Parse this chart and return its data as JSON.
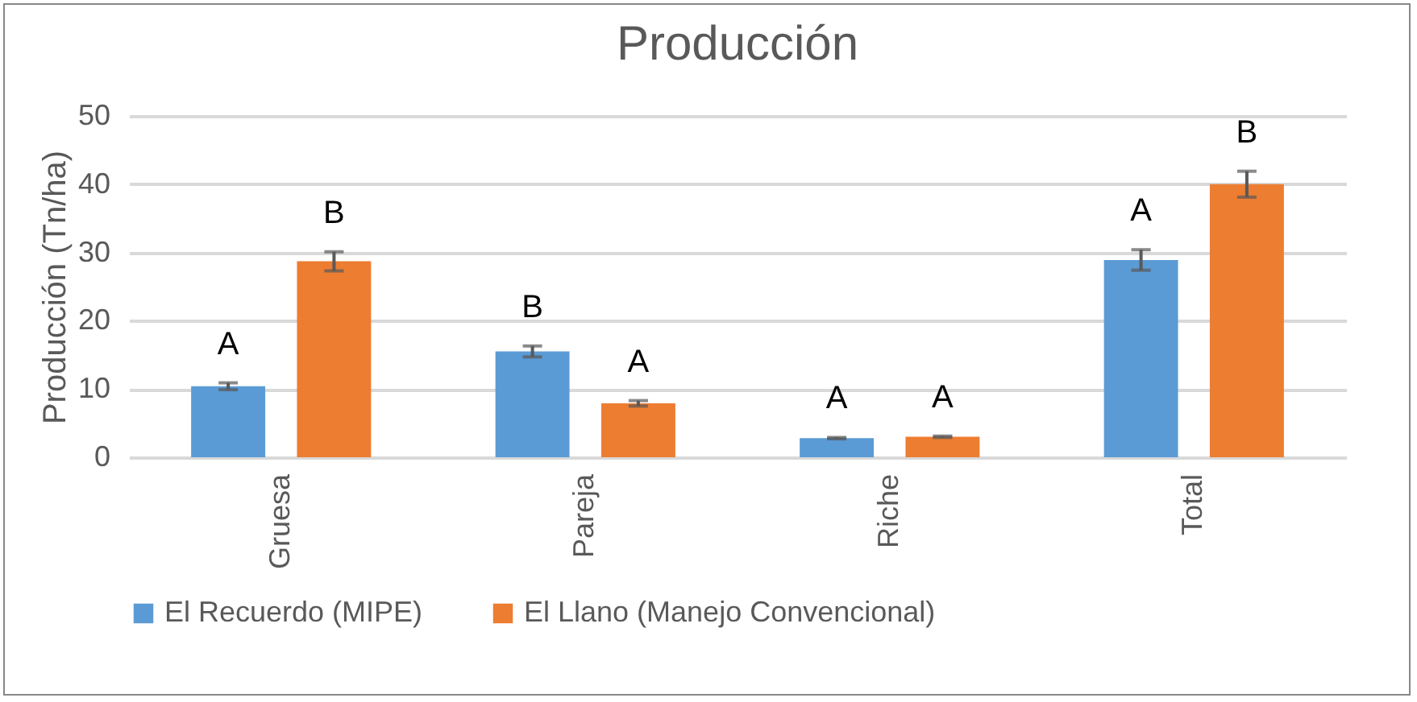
{
  "chart_data": {
    "type": "bar",
    "title": "Producción",
    "ylabel": "Producción (Tn/ha)",
    "categories": [
      "Gruesa",
      "Pareja",
      "Riche",
      "Total"
    ],
    "series": [
      {
        "name": "El Recuerdo (MIPE)",
        "color": "#5b9bd5",
        "values": [
          10.4,
          15.5,
          2.8,
          28.9
        ],
        "errors": [
          0.5,
          0.8,
          0.1,
          1.5
        ],
        "value_labels": [
          "A",
          "B",
          "A",
          "A"
        ]
      },
      {
        "name": "El Llano (Manejo Convencional)",
        "color": "#ed7d31",
        "values": [
          28.7,
          7.9,
          3.0,
          40
        ],
        "errors": [
          1.4,
          0.4,
          0.1,
          1.9
        ],
        "value_labels": [
          "B",
          "A",
          "A",
          "B"
        ]
      }
    ],
    "ylim": [
      0,
      50
    ],
    "yticks": [
      0,
      10,
      20,
      30,
      40,
      50
    ],
    "grid": "y",
    "legend": "bottom"
  }
}
